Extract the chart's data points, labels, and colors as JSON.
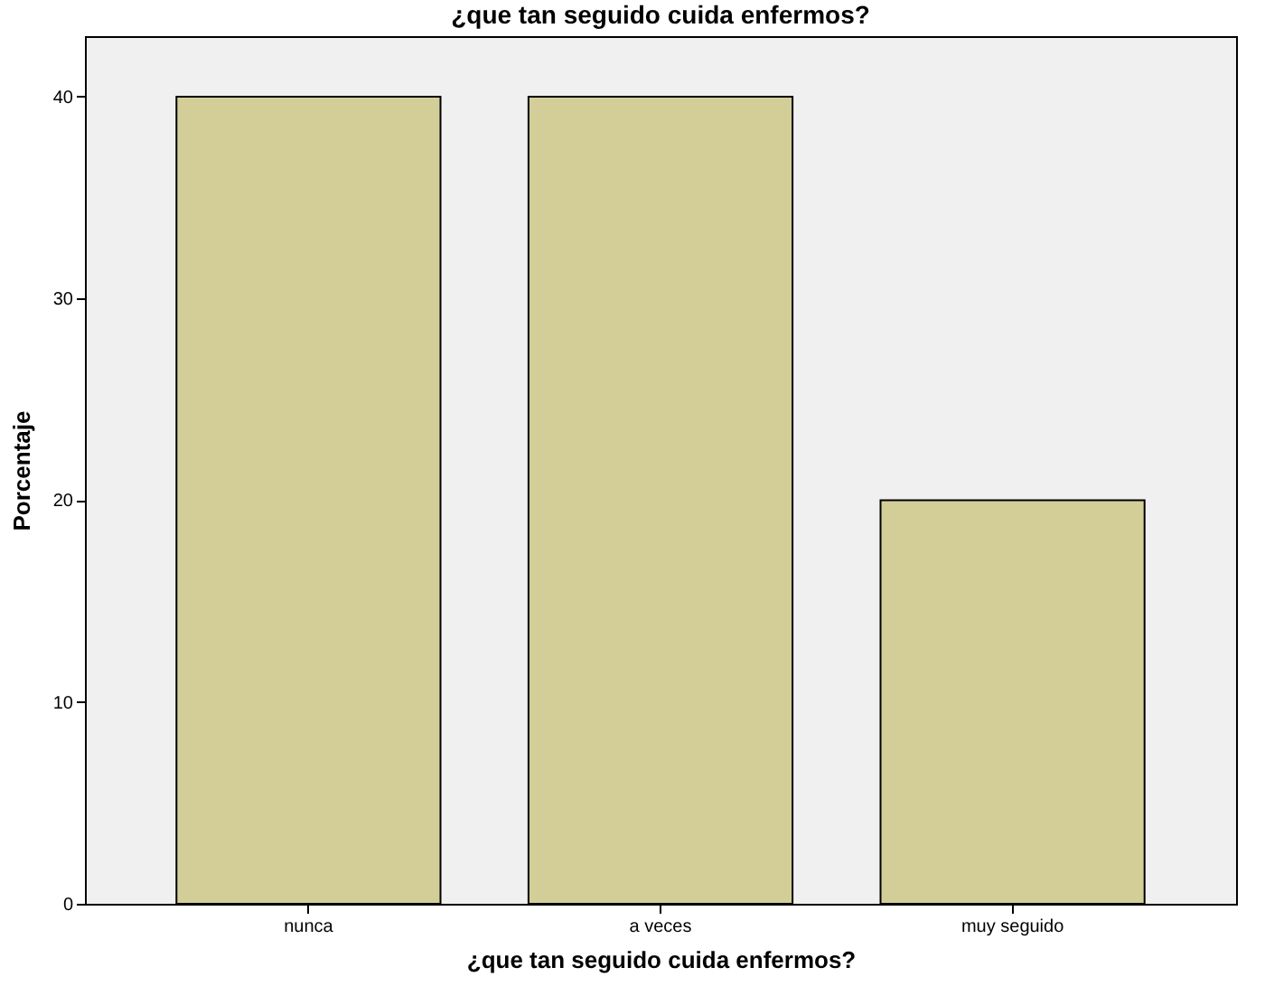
{
  "chart_data": {
    "type": "bar",
    "title": "¿que tan seguido cuida enfermos?",
    "xlabel": "¿que tan seguido cuida enfermos?",
    "ylabel": "Porcentaje",
    "categories": [
      "nunca",
      "a veces",
      "muy seguido"
    ],
    "values": [
      40,
      40,
      20
    ],
    "color": "#d3ce97",
    "ylim": [
      0,
      43
    ],
    "yticks": [
      0,
      10,
      20,
      30,
      40
    ],
    "grid": false
  }
}
